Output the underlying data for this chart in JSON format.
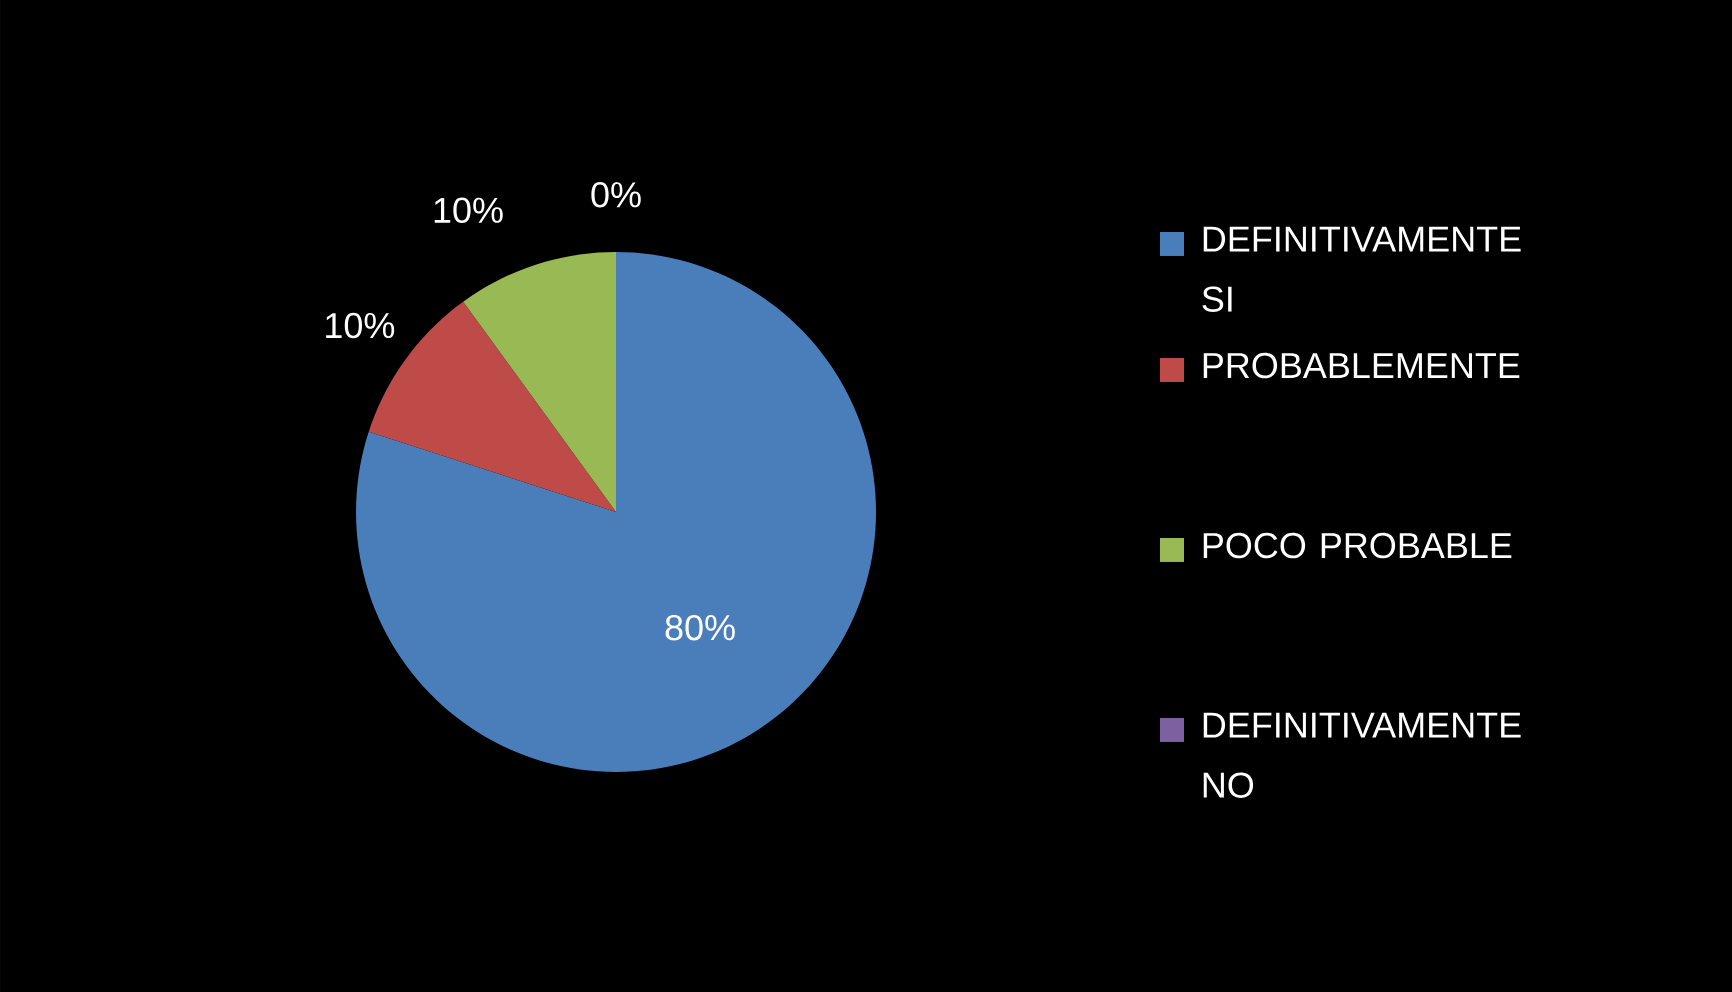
{
  "chart_data": {
    "type": "pie",
    "categories": [
      "DEFINITIVAMENTE SI",
      "PROBABLEMENTE",
      "POCO PROBABLE",
      "DEFINITIVAMENTE NO"
    ],
    "values": [
      80,
      10,
      10,
      0
    ],
    "value_labels": [
      "80%",
      "10%",
      "10%",
      "0%"
    ],
    "colors": [
      "#4a7ebb",
      "#be4b48",
      "#98b954",
      "#7d60a0"
    ],
    "legend": "right"
  }
}
